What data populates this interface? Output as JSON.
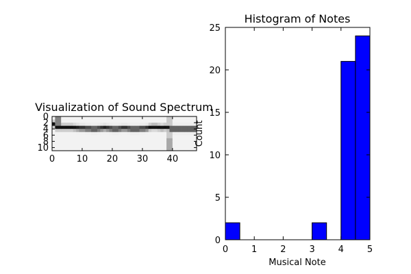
{
  "chart_data": [
    {
      "type": "heatmap",
      "title": "Visualization of Sound Spectrum",
      "xlabel": "",
      "ylabel": "",
      "xlim": [
        0,
        48
      ],
      "ylim": [
        11,
        0
      ],
      "xticks": [
        "0",
        "10",
        "20",
        "30",
        "40"
      ],
      "yticks": [
        "0",
        "2",
        "4",
        "6",
        "8",
        "10"
      ],
      "colormap": "grayscale-inverted",
      "dominant_row_by_column": [
        2.5,
        3.5,
        3.5,
        3.5,
        3.5,
        3.5,
        3.5,
        3.6,
        3.7,
        3.8,
        3.8,
        3.9,
        3.9,
        4.0,
        4.0,
        3.9,
        3.8,
        3.7,
        3.8,
        3.9,
        4.0,
        4.0,
        3.9,
        3.8,
        3.8,
        3.9,
        4.0,
        4.0,
        4.0,
        3.9,
        3.9,
        3.8,
        3.5,
        3.4,
        3.4,
        3.5,
        3.6,
        3.5,
        3.6,
        4.0,
        4.0,
        4.0,
        4.0,
        4.0,
        4.0,
        4.0,
        4.0,
        4.0
      ]
    },
    {
      "type": "bar",
      "title": "Histogram of Notes",
      "xlabel": "Musical Note",
      "ylabel": "Count",
      "xlim": [
        0,
        5
      ],
      "ylim": [
        0,
        25
      ],
      "xticks": [
        "0",
        "1",
        "2",
        "3",
        "4",
        "5"
      ],
      "yticks": [
        "0",
        "5",
        "10",
        "15",
        "20",
        "25"
      ],
      "bin_edges": [
        0,
        0.5,
        1,
        1.5,
        2,
        2.5,
        3,
        3.5,
        4,
        4.5,
        5
      ],
      "values": [
        2,
        0,
        0,
        0,
        0,
        0,
        2,
        0,
        21,
        24
      ],
      "bar_color": "#0000ff"
    }
  ]
}
